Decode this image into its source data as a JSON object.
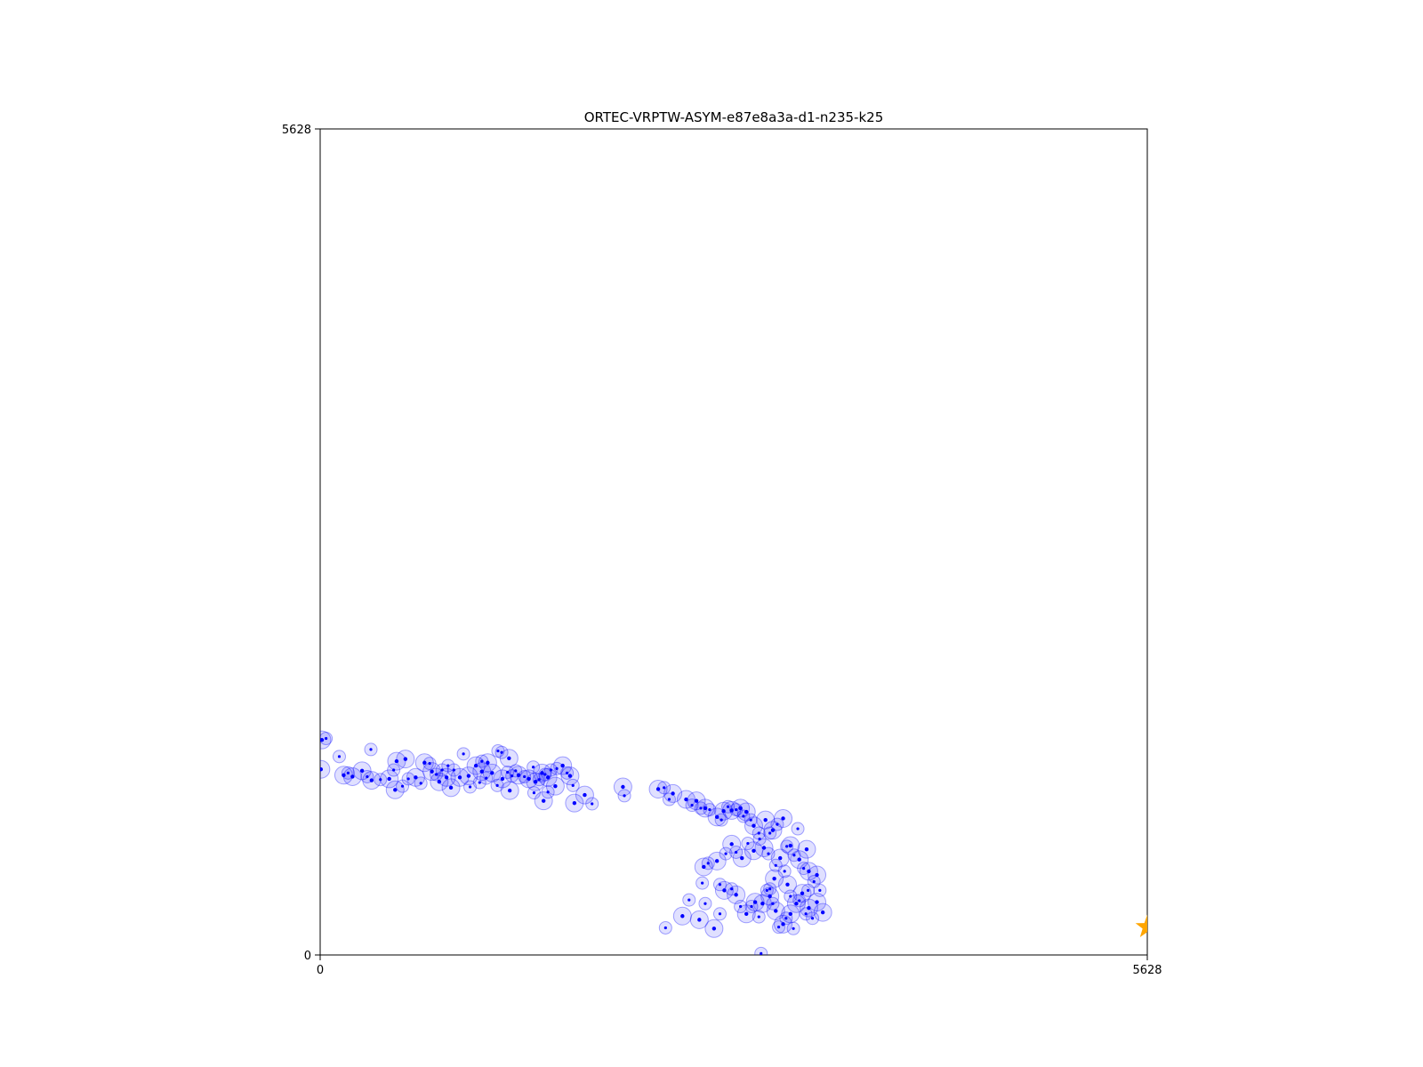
{
  "chart_data": {
    "type": "scatter",
    "title": "ORTEC-VRPTW-ASYM-e87e8a3a-d1-n235-k25",
    "xlabel": "",
    "ylabel": "",
    "xlim": [
      0,
      5628
    ],
    "ylim": [
      0,
      5628
    ],
    "x_tick_labels": [
      "0",
      "5628"
    ],
    "y_tick_labels": [
      "0",
      "5628"
    ],
    "grid": false,
    "colors": {
      "client": "#0000ff",
      "client_halo": "#0000ff",
      "depot": "#ffa500"
    },
    "depot": {
      "x": 5628,
      "y": 190
    },
    "clients": [
      [
        12,
        1465,
        3
      ],
      [
        40,
        1475,
        2
      ],
      [
        5,
        1265,
        3
      ],
      [
        130,
        1352,
        2
      ],
      [
        160,
        1225,
        3
      ],
      [
        190,
        1240,
        2
      ],
      [
        220,
        1215,
        3
      ],
      [
        285,
        1255,
        3
      ],
      [
        320,
        1215,
        2
      ],
      [
        350,
        1190,
        3
      ],
      [
        410,
        1195,
        2
      ],
      [
        470,
        1200,
        3
      ],
      [
        500,
        1260,
        2
      ],
      [
        345,
        1400,
        2
      ],
      [
        510,
        1125,
        3
      ],
      [
        560,
        1150,
        2
      ],
      [
        580,
        1335,
        3
      ],
      [
        600,
        1200,
        2
      ],
      [
        650,
        1210,
        3
      ],
      [
        685,
        1170,
        2
      ],
      [
        710,
        1310,
        3
      ],
      [
        745,
        1305,
        2
      ],
      [
        760,
        1250,
        3
      ],
      [
        790,
        1230,
        2
      ],
      [
        810,
        1180,
        3
      ],
      [
        830,
        1260,
        2
      ],
      [
        860,
        1210,
        3
      ],
      [
        870,
        1290,
        2
      ],
      [
        890,
        1140,
        3
      ],
      [
        910,
        1260,
        2
      ],
      [
        950,
        1210,
        3
      ],
      [
        975,
        1370,
        2
      ],
      [
        1010,
        1220,
        3
      ],
      [
        1020,
        1145,
        2
      ],
      [
        1060,
        1290,
        3
      ],
      [
        1085,
        1175,
        2
      ],
      [
        1100,
        1250,
        3
      ],
      [
        1130,
        1205,
        2
      ],
      [
        1170,
        1240,
        3
      ],
      [
        1205,
        1155,
        2
      ],
      [
        1240,
        1200,
        3
      ],
      [
        1275,
        1245,
        2
      ],
      [
        1290,
        1120,
        3
      ],
      [
        1330,
        1255,
        2
      ],
      [
        1350,
        1225,
        3
      ],
      [
        1390,
        1215,
        2
      ],
      [
        1420,
        1200,
        3
      ],
      [
        1450,
        1280,
        2
      ],
      [
        1465,
        1180,
        3
      ],
      [
        1490,
        1195,
        2
      ],
      [
        1510,
        1240,
        3
      ],
      [
        1530,
        1230,
        2
      ],
      [
        1550,
        1210,
        3
      ],
      [
        1570,
        1260,
        2
      ],
      [
        1600,
        1150,
        3
      ],
      [
        1610,
        1270,
        2
      ],
      [
        1650,
        1290,
        3
      ],
      [
        1680,
        1240,
        2
      ],
      [
        1700,
        1220,
        3
      ],
      [
        1720,
        1155,
        2
      ],
      [
        1550,
        1110,
        2
      ],
      [
        1730,
        1035,
        3
      ],
      [
        1210,
        1390,
        2
      ],
      [
        1235,
        1380,
        2
      ],
      [
        1285,
        1340,
        3
      ],
      [
        1305,
        1220,
        2
      ],
      [
        1455,
        1105,
        2
      ],
      [
        1520,
        1050,
        3
      ],
      [
        520,
        1320,
        3
      ],
      [
        1100,
        1320,
        2
      ],
      [
        1140,
        1310,
        3
      ],
      [
        1800,
        1090,
        3
      ],
      [
        1850,
        1030,
        2
      ],
      [
        2060,
        1145,
        3
      ],
      [
        2070,
        1085,
        2
      ],
      [
        2300,
        1130,
        3
      ],
      [
        2375,
        1060,
        2
      ],
      [
        2400,
        1100,
        3
      ],
      [
        2340,
        1140,
        2
      ],
      [
        2490,
        1060,
        3
      ],
      [
        2530,
        1020,
        2
      ],
      [
        2560,
        1050,
        3
      ],
      [
        2590,
        1000,
        2
      ],
      [
        2620,
        1000,
        3
      ],
      [
        2650,
        990,
        2
      ],
      [
        2700,
        940,
        3
      ],
      [
        2730,
        920,
        2
      ],
      [
        2745,
        980,
        3
      ],
      [
        2775,
        1010,
        2
      ],
      [
        2800,
        985,
        3
      ],
      [
        2830,
        990,
        2
      ],
      [
        2860,
        1000,
        3
      ],
      [
        2880,
        945,
        2
      ],
      [
        2900,
        975,
        3
      ],
      [
        2930,
        920,
        2
      ],
      [
        2950,
        880,
        3
      ],
      [
        2985,
        830,
        2
      ],
      [
        3030,
        920,
        3
      ],
      [
        3060,
        830,
        2
      ],
      [
        3080,
        850,
        3
      ],
      [
        3110,
        890,
        2
      ],
      [
        3150,
        930,
        3
      ],
      [
        3175,
        740,
        2
      ],
      [
        3200,
        745,
        3
      ],
      [
        3225,
        680,
        2
      ],
      [
        3260,
        650,
        3
      ],
      [
        3290,
        590,
        2
      ],
      [
        3325,
        570,
        3
      ],
      [
        3360,
        500,
        2
      ],
      [
        3380,
        545,
        3
      ],
      [
        2720,
        480,
        2
      ],
      [
        2750,
        440,
        3
      ],
      [
        2800,
        450,
        2
      ],
      [
        2830,
        410,
        3
      ],
      [
        2860,
        330,
        2
      ],
      [
        2900,
        280,
        3
      ],
      [
        2935,
        330,
        2
      ],
      [
        2960,
        360,
        3
      ],
      [
        2985,
        260,
        2
      ],
      [
        3010,
        350,
        3
      ],
      [
        3040,
        440,
        2
      ],
      [
        3060,
        400,
        3
      ],
      [
        3080,
        350,
        2
      ],
      [
        3100,
        300,
        3
      ],
      [
        3120,
        190,
        2
      ],
      [
        3150,
        210,
        3
      ],
      [
        3170,
        250,
        2
      ],
      [
        3200,
        280,
        3
      ],
      [
        3220,
        180,
        2
      ],
      [
        3240,
        350,
        3
      ],
      [
        3260,
        370,
        2
      ],
      [
        3280,
        420,
        3
      ],
      [
        3305,
        280,
        2
      ],
      [
        3325,
        320,
        3
      ],
      [
        3350,
        250,
        2
      ],
      [
        3380,
        360,
        3
      ],
      [
        3400,
        440,
        2
      ],
      [
        3420,
        290,
        3
      ],
      [
        3060,
        450,
        2
      ],
      [
        3090,
        520,
        3
      ],
      [
        3100,
        610,
        2
      ],
      [
        3130,
        660,
        3
      ],
      [
        3160,
        570,
        2
      ],
      [
        3180,
        480,
        3
      ],
      [
        3200,
        400,
        2
      ],
      [
        2350,
        185,
        2
      ],
      [
        2465,
        265,
        3
      ],
      [
        2510,
        375,
        2
      ],
      [
        2580,
        240,
        3
      ],
      [
        2620,
        350,
        2
      ],
      [
        2680,
        180,
        3
      ],
      [
        2720,
        280,
        2
      ],
      [
        2600,
        490,
        2
      ],
      [
        2610,
        600,
        3
      ],
      [
        2640,
        625,
        2
      ],
      [
        2700,
        640,
        3
      ],
      [
        2760,
        690,
        2
      ],
      [
        2800,
        755,
        3
      ],
      [
        2830,
        700,
        2
      ],
      [
        2870,
        660,
        3
      ],
      [
        2910,
        760,
        2
      ],
      [
        2950,
        710,
        3
      ],
      [
        2990,
        790,
        2
      ],
      [
        3020,
        730,
        3
      ],
      [
        3050,
        690,
        2
      ],
      [
        3000,
        10,
        2
      ],
      [
        3320,
        440,
        2
      ],
      [
        3250,
        860,
        2
      ],
      [
        3310,
        720,
        3
      ]
    ]
  }
}
